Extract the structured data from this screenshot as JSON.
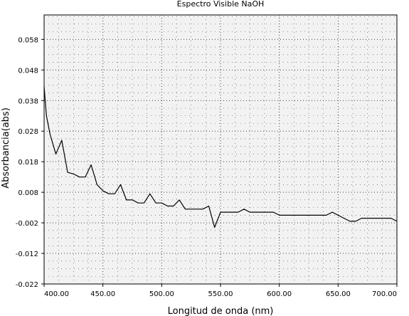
{
  "chart_data": {
    "type": "line",
    "title": "Espectro Visible NaOH",
    "xlabel": "Longitud de onda (nm)",
    "ylabel": "Absorbancia(abs)",
    "xlim": [
      400,
      700
    ],
    "ylim": [
      -0.022,
      0.066
    ],
    "xticks": [
      400,
      450,
      500,
      550,
      600,
      650,
      700
    ],
    "xtick_labels": [
      "400.00",
      "450.00",
      "500.00",
      "550.00",
      "600.00",
      "650.00",
      "700.00"
    ],
    "yticks": [
      -0.022,
      -0.012,
      -0.002,
      0.008,
      0.018,
      0.028,
      0.038,
      0.048,
      0.058
    ],
    "ytick_labels": [
      "-0.022",
      "-0.012",
      "-0.002",
      "0.008",
      "0.018",
      "0.028",
      "0.038",
      "0.048",
      "0.058"
    ],
    "grid": true,
    "colors": {
      "line": "#000000",
      "plot_background": "#f2f2f2",
      "grid": "#444444"
    },
    "series": [
      {
        "x": [
          400,
          402,
          405,
          410,
          415,
          420,
          425,
          430,
          435,
          440,
          445,
          450,
          455,
          460,
          465,
          470,
          475,
          480,
          485,
          490,
          495,
          500,
          505,
          510,
          515,
          520,
          525,
          530,
          535,
          540,
          545,
          550,
          555,
          560,
          565,
          570,
          575,
          580,
          585,
          590,
          595,
          600,
          605,
          610,
          615,
          620,
          625,
          630,
          635,
          640,
          645,
          650,
          655,
          660,
          665,
          670,
          675,
          680,
          685,
          690,
          695,
          700
        ],
        "y": [
          0.0425,
          0.033,
          0.027,
          0.0205,
          0.025,
          0.0145,
          0.014,
          0.013,
          0.013,
          0.017,
          0.0105,
          0.0085,
          0.0075,
          0.0075,
          0.0105,
          0.0055,
          0.0055,
          0.0045,
          0.0045,
          0.0075,
          0.0045,
          0.0045,
          0.0035,
          0.0035,
          0.0055,
          0.0025,
          0.0025,
          0.0025,
          0.0025,
          0.0035,
          -0.0035,
          0.0015,
          0.0015,
          0.0015,
          0.0015,
          0.0025,
          0.0015,
          0.0015,
          0.0015,
          0.0015,
          0.0015,
          0.0005,
          0.0005,
          0.0005,
          0.0005,
          0.0005,
          0.0005,
          0.0005,
          0.0005,
          0.0005,
          0.0015,
          0.0005,
          -0.0005,
          -0.0015,
          -0.0015,
          -0.0005,
          -0.0005,
          -0.0005,
          -0.0005,
          -0.0005,
          -0.0005,
          -0.0015
        ]
      }
    ]
  }
}
